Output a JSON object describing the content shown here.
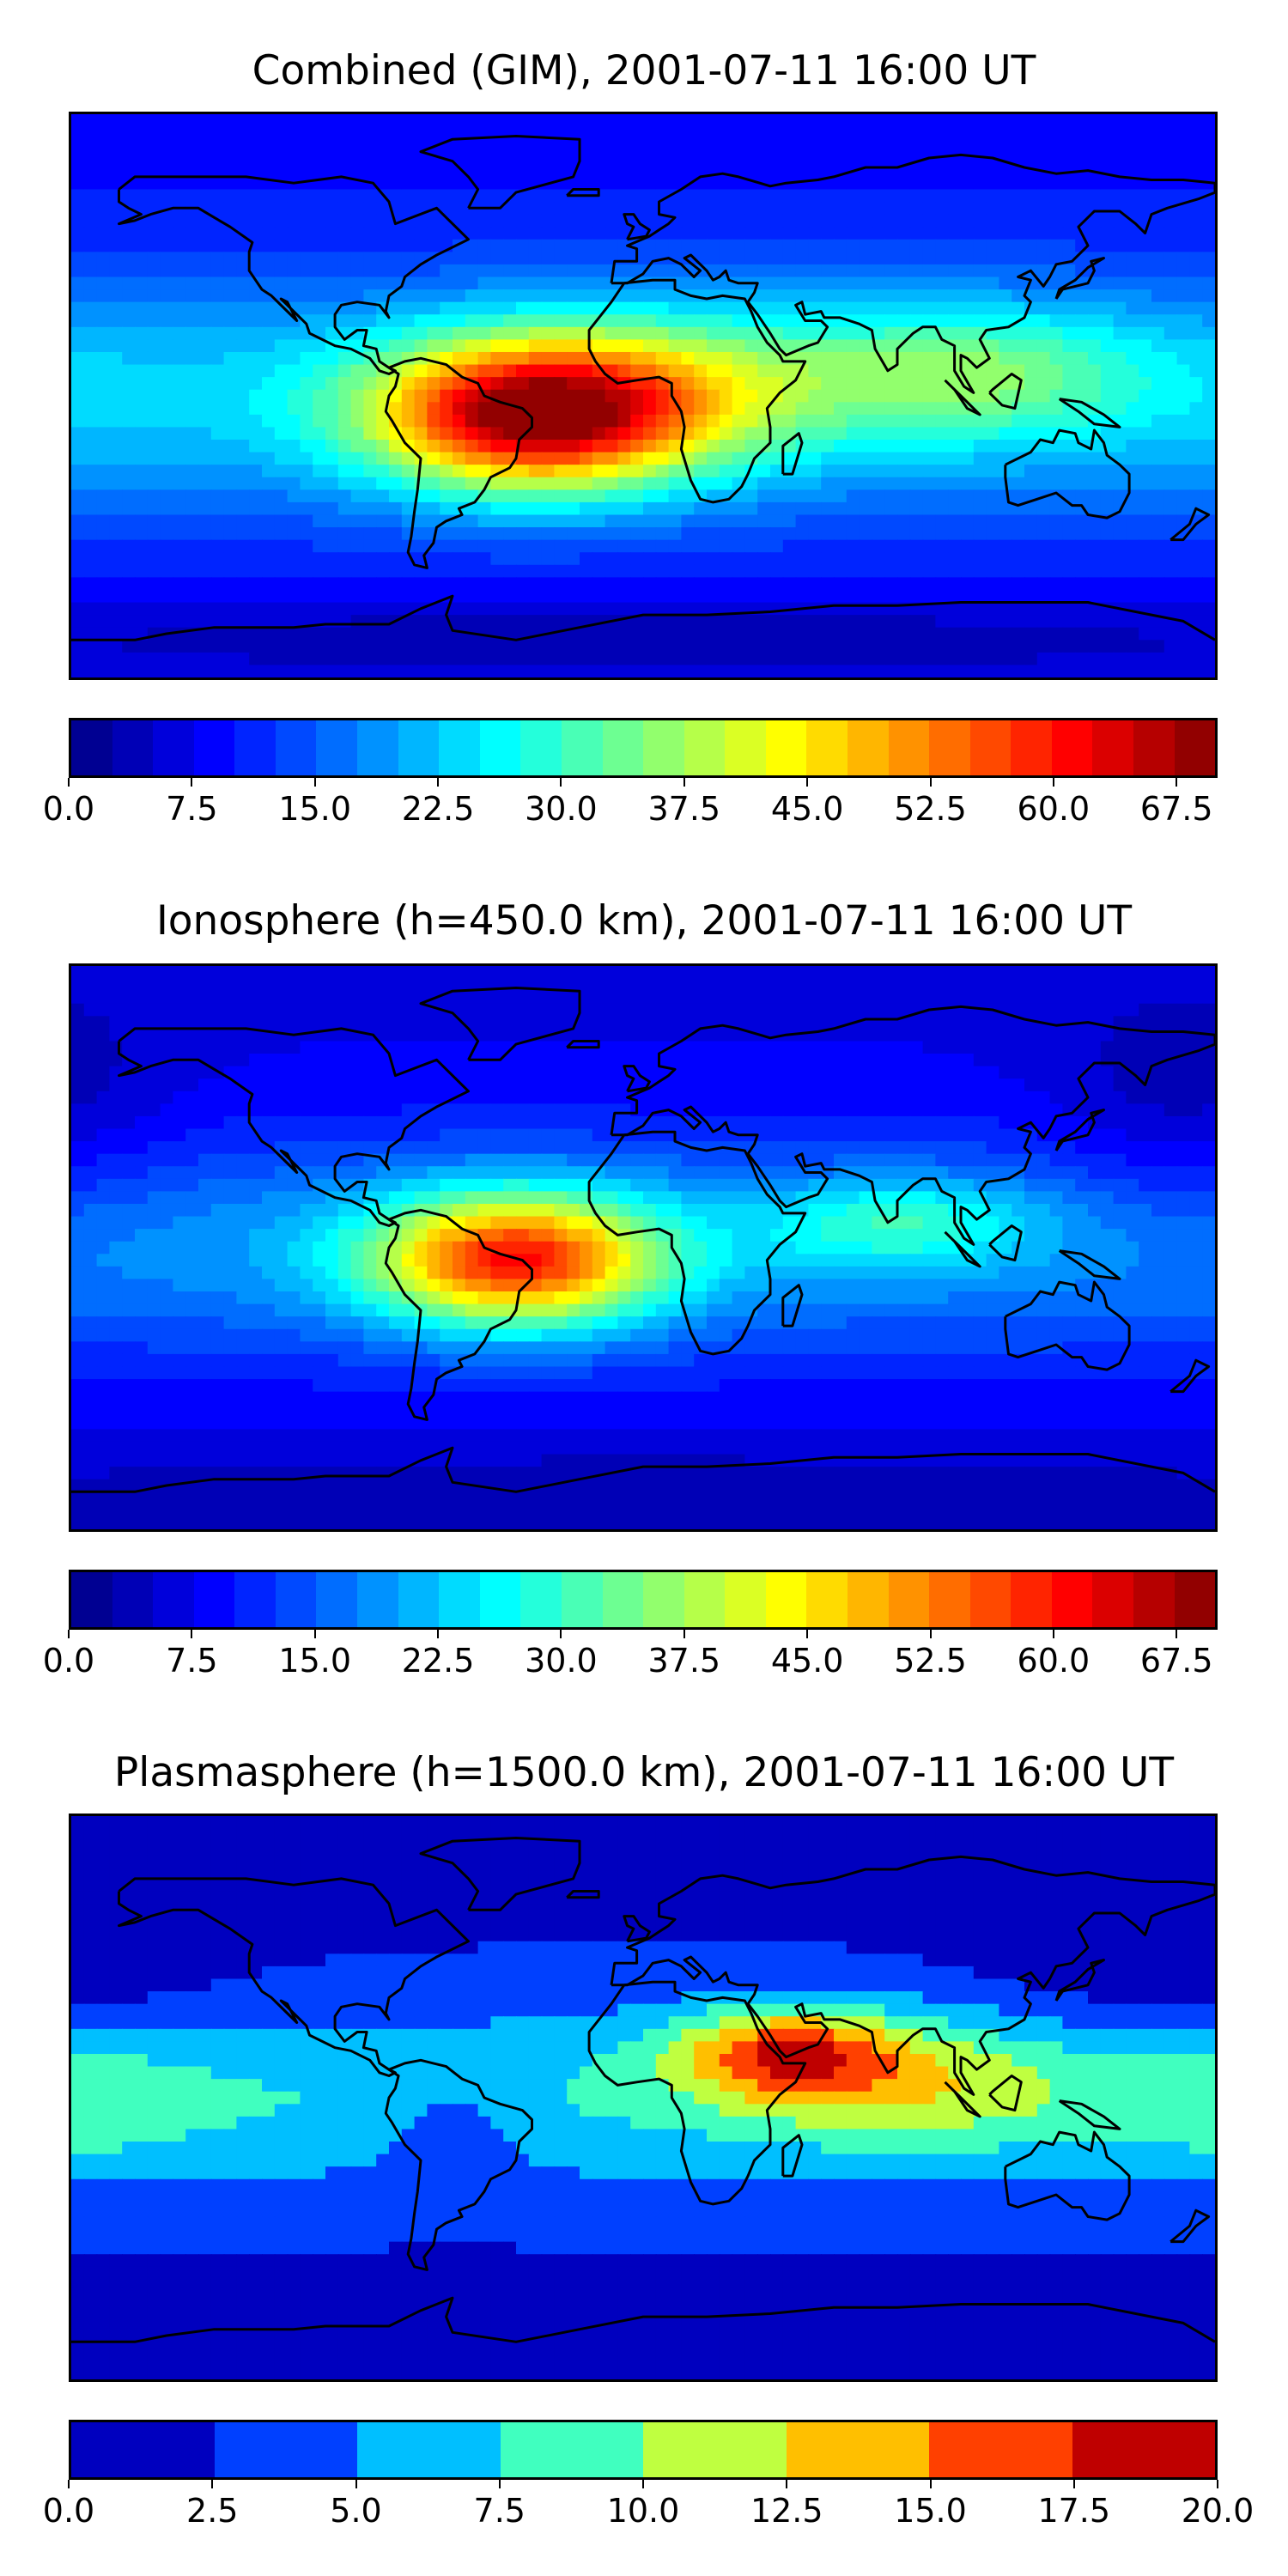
{
  "panels": [
    {
      "title": "Combined (GIM), 2001-07-11 16:00 UT",
      "colorbar": {
        "min": 0.0,
        "max": 70.0,
        "step": 2.5,
        "tick_labels": [
          "0.0",
          "7.5",
          "15.0",
          "22.5",
          "30.0",
          "37.5",
          "45.0",
          "52.5",
          "60.0",
          "67.5"
        ]
      },
      "features": [
        {
          "kind": "tec-max",
          "lon": -35,
          "lat": -5,
          "value": 62
        },
        {
          "kind": "tec-max",
          "lon": -55,
          "lat": -10,
          "value": 60
        },
        {
          "kind": "equatorial-band",
          "lon": 90,
          "lat": 5,
          "value": 30
        },
        {
          "kind": "polar-low",
          "lon": 0,
          "lat": -80,
          "value": 5
        }
      ]
    },
    {
      "title": "Ionosphere  (h=450.0 km), 2001-07-11 16:00 UT",
      "colorbar": {
        "min": 0.0,
        "max": 70.0,
        "step": 2.5,
        "tick_labels": [
          "0.0",
          "7.5",
          "15.0",
          "22.5",
          "30.0",
          "37.5",
          "45.0",
          "52.5",
          "60.0",
          "67.5"
        ]
      },
      "features": [
        {
          "kind": "tec-max",
          "lon": -50,
          "lat": -5,
          "value": 56
        },
        {
          "kind": "tec-max",
          "lon": -20,
          "lat": 0,
          "value": 52
        },
        {
          "kind": "equatorial-band",
          "lon": 80,
          "lat": 5,
          "value": 27
        },
        {
          "kind": "polar-low",
          "lon": 0,
          "lat": -75,
          "value": 5
        }
      ]
    },
    {
      "title": "Plasmasphere (h=1500.0 km), 2001-07-11 16:00 UT",
      "colorbar": {
        "min": 0.0,
        "max": 20.0,
        "step": 2.5,
        "tick_labels": [
          "0.0",
          "2.5",
          "5.0",
          "7.5",
          "10.0",
          "12.5",
          "15.0",
          "17.5",
          "20.0"
        ]
      },
      "features": [
        {
          "kind": "tec-max",
          "lon": 45,
          "lat": 15,
          "value": 17
        },
        {
          "kind": "tec-band",
          "lon": 80,
          "lat": 10,
          "value": 11
        },
        {
          "kind": "tec-band",
          "lon": -170,
          "lat": 0,
          "value": 8
        },
        {
          "kind": "polar-low",
          "lon": 0,
          "lat": -80,
          "value": 1
        }
      ]
    }
  ],
  "colors": {
    "coastline": "#000000",
    "border": "#000000"
  }
}
